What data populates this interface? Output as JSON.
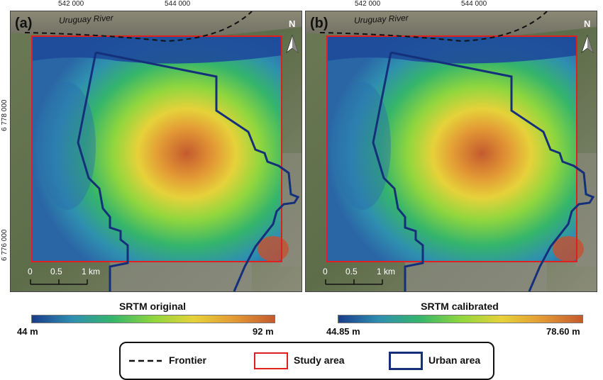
{
  "x_ticks": [
    "542 000",
    "544 000"
  ],
  "y_ticks": [
    "6 778 000",
    "6 776 000"
  ],
  "panels": [
    {
      "label": "(a)",
      "river_label": "Uruguay River",
      "north_label": "N",
      "scale_labels": [
        "0",
        "0.5",
        "1 km"
      ],
      "colorbar": {
        "title": "SRTM original",
        "min_label": "44 m",
        "max_label": "92 m"
      }
    },
    {
      "label": "(b)",
      "river_label": "Uruguay River",
      "north_label": "N",
      "scale_labels": [
        "0",
        "0.5",
        "1 km"
      ],
      "colorbar": {
        "title": "SRTM calibrated",
        "min_label": "44.85 m",
        "max_label": "78.60 m"
      }
    }
  ],
  "legend": {
    "frontier": "Frontier",
    "study_area": "Study area",
    "urban_area": "Urban area"
  },
  "colors": {
    "study_area": "#e02020",
    "urban_area": "#15307a",
    "frontier": "#111111",
    "dem_low": "#1a3c8c",
    "dem_mid": "#7fd638",
    "dem_high": "#c44a2a"
  }
}
